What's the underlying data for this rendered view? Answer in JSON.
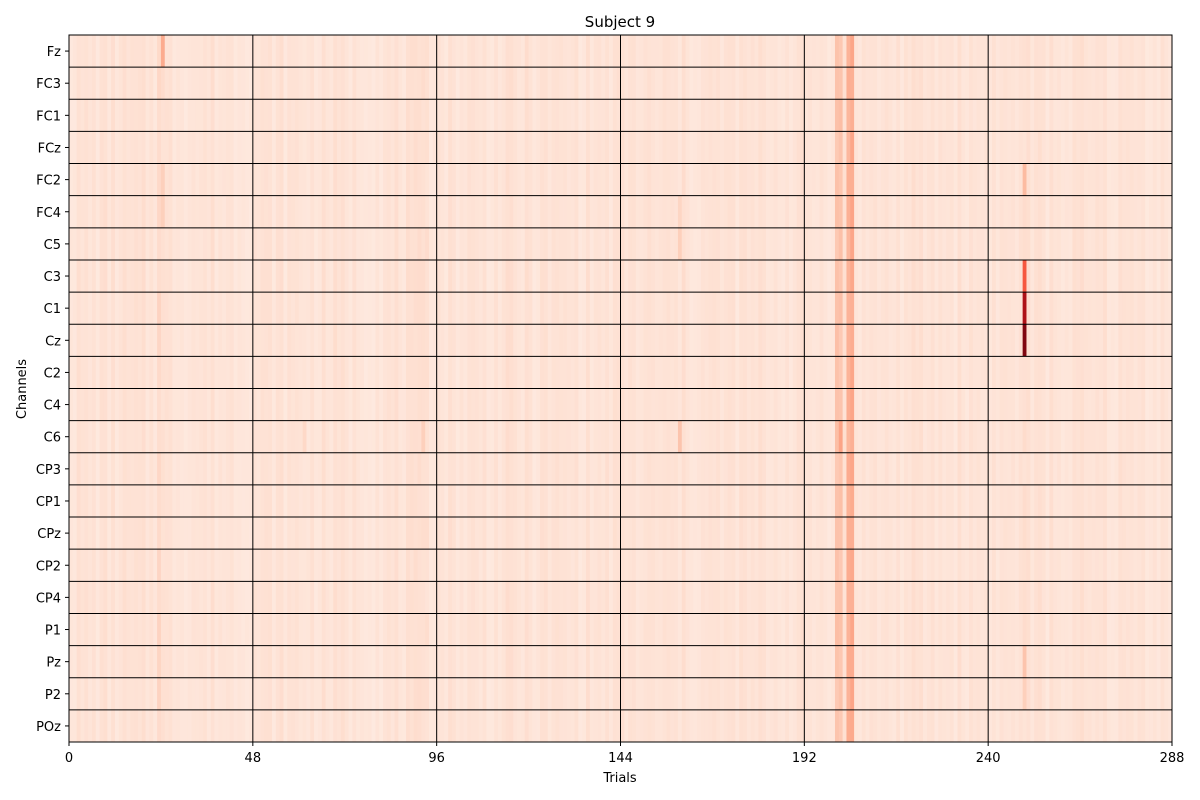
{
  "chart_data": {
    "type": "heatmap",
    "title": "Subject 9",
    "xlabel": "Trials",
    "ylabel": "Channels",
    "xlim": [
      0,
      288
    ],
    "xticks": [
      0,
      48,
      96,
      144,
      192,
      240,
      288
    ],
    "channels": [
      "Fz",
      "FC3",
      "FC1",
      "FCz",
      "FC2",
      "FC4",
      "C5",
      "C3",
      "C1",
      "Cz",
      "C2",
      "C4",
      "C6",
      "CP3",
      "CP1",
      "CPz",
      "CP2",
      "CP4",
      "P1",
      "Pz",
      "P2",
      "POz"
    ],
    "n_trials": 288,
    "colormap": "Reds",
    "grid_color": "#000000",
    "background_level": 0.07,
    "trial_level_profile": [
      {
        "trial": 23,
        "level": 0.15
      },
      {
        "trial": 24,
        "level": 0.12
      },
      {
        "trial": 92,
        "level": 0.12
      },
      {
        "trial": 93,
        "level": 0.12
      },
      {
        "trial": 200,
        "level": 0.22
      },
      {
        "trial": 201,
        "level": 0.22
      },
      {
        "trial": 203,
        "level": 0.28
      },
      {
        "trial": 204,
        "level": 0.3
      },
      {
        "trial": 249,
        "level": 0.12
      }
    ],
    "highlights": [
      {
        "channel": "Fz",
        "trial": 24,
        "level": 0.3
      },
      {
        "channel": "FC2",
        "trial": 24,
        "level": 0.18
      },
      {
        "channel": "FC4",
        "trial": 24,
        "level": 0.18
      },
      {
        "channel": "FC4",
        "trial": 159,
        "level": 0.16
      },
      {
        "channel": "C5",
        "trial": 159,
        "level": 0.18
      },
      {
        "channel": "C6",
        "trial": 159,
        "level": 0.22
      },
      {
        "channel": "C6",
        "trial": 61,
        "level": 0.15
      },
      {
        "channel": "C6",
        "trial": 92,
        "level": 0.18
      },
      {
        "channel": "C6",
        "trial": 201,
        "level": 0.32
      },
      {
        "channel": "FC2",
        "trial": 249,
        "level": 0.25
      },
      {
        "channel": "C3",
        "trial": 249,
        "level": 0.55
      },
      {
        "channel": "C1",
        "trial": 249,
        "level": 0.85
      },
      {
        "channel": "Cz",
        "trial": 249,
        "level": 0.95
      },
      {
        "channel": "Pz",
        "trial": 249,
        "level": 0.22
      },
      {
        "channel": "P2",
        "trial": 249,
        "level": 0.18
      }
    ]
  }
}
